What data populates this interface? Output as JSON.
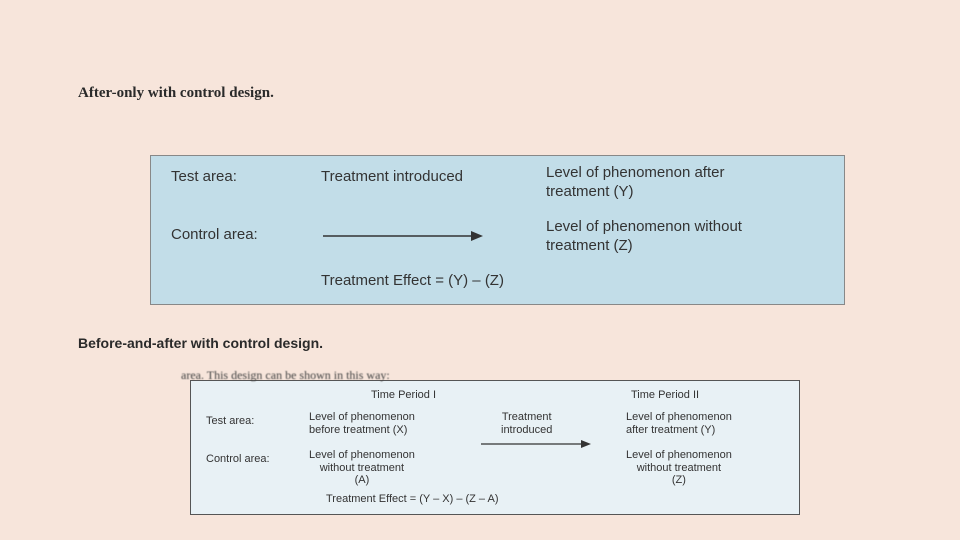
{
  "heading1": "After-only with control design.",
  "heading2": "Before-and-after with control design.",
  "panel1": {
    "bg_color": "#c2dde8",
    "border_color": "#888888",
    "text_color": "#333333",
    "fontsize": 15,
    "row1": {
      "label": "Test area:",
      "mid": "Treatment introduced",
      "right": "Level of phenomenon after\ntreatment (Y)"
    },
    "row2": {
      "label": "Control area:",
      "right": "Level of phenomenon without\ntreatment (Z)"
    },
    "arrow_color": "#333333",
    "formula": "Treatment Effect = (Y) – (Z)"
  },
  "panel2": {
    "bg_color": "#e8f1f5",
    "border_color": "#555555",
    "text_color": "#333333",
    "fontsize": 11,
    "truncated_text": "area. This design can be shown in this way:",
    "headers": {
      "col1": "Time Period I",
      "col2": "Time Period II"
    },
    "row1": {
      "label": "Test area:",
      "c1": "Level of phenomenon\nbefore treatment (X)",
      "mid": "Treatment\nintroduced",
      "c2": "Level of phenomenon\nafter treatment (Y)"
    },
    "row2": {
      "label": "Control area:",
      "c1": "Level of phenomenon\nwithout treatment\n(A)",
      "c2": "Level of phenomenon\nwithout treatment\n(Z)"
    },
    "arrow_color": "#333333",
    "formula": "Treatment Effect = (Y – X) – (Z – A)"
  }
}
